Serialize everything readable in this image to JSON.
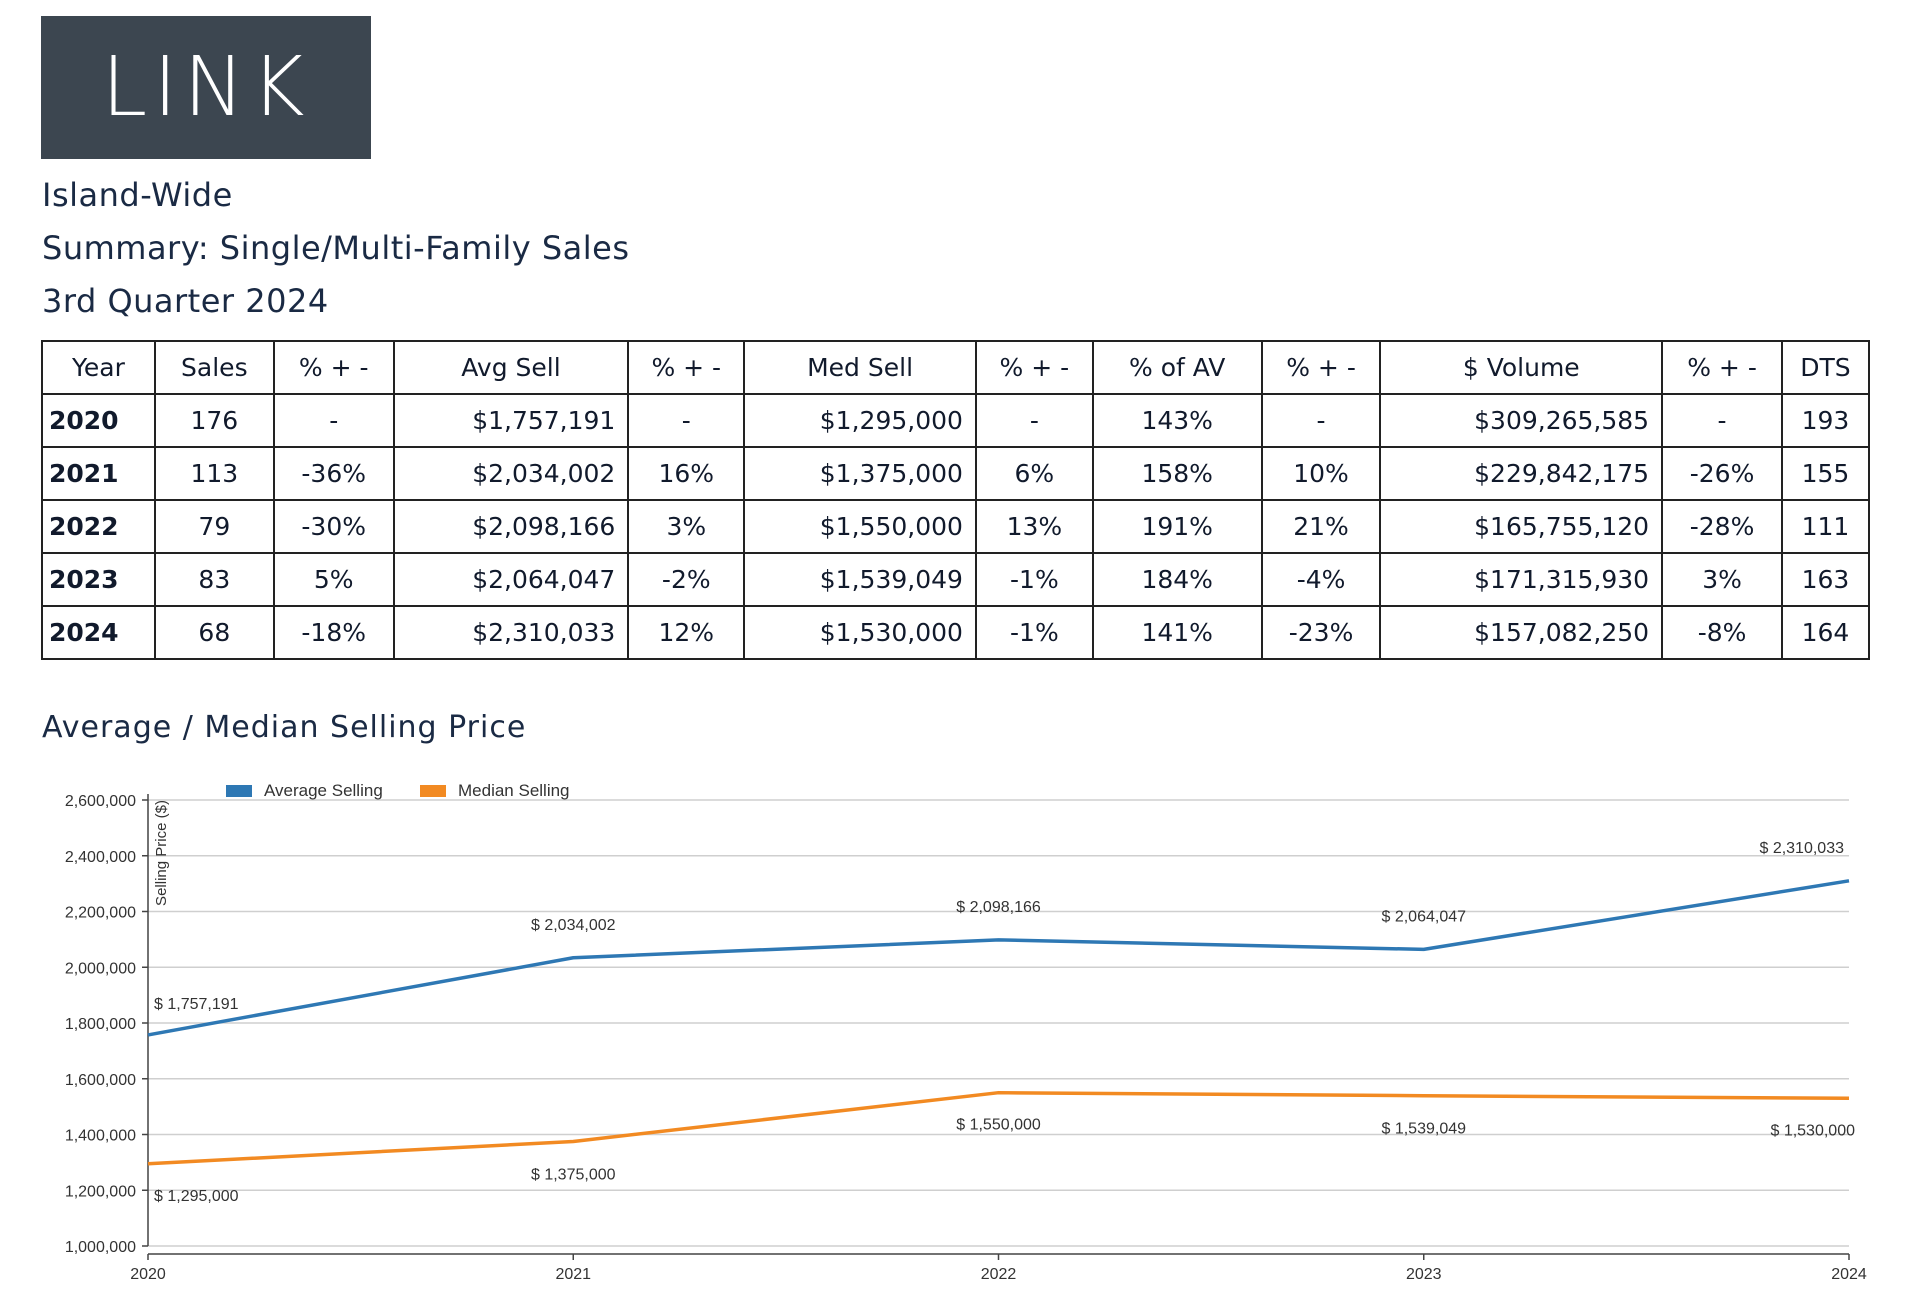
{
  "logo": {
    "text": "LINK"
  },
  "header": {
    "area": "Island-Wide",
    "summary": "Summary: Single/Multi-Family Sales",
    "period": "3rd Quarter 2024"
  },
  "table": {
    "headers": [
      "Year",
      "Sales",
      "% + -",
      "Avg Sell",
      "% + -",
      "Med Sell",
      "% + -",
      "% of AV",
      "% + -",
      "$ Volume",
      "% + -",
      "DTS"
    ],
    "rows": [
      [
        "2020",
        "176",
        "-",
        "$1,757,191",
        "-",
        "$1,295,000",
        "-",
        "143%",
        "-",
        "$309,265,585",
        "-",
        "193"
      ],
      [
        "2021",
        "113",
        "-36%",
        "$2,034,002",
        "16%",
        "$1,375,000",
        "6%",
        "158%",
        "10%",
        "$229,842,175",
        "-26%",
        "155"
      ],
      [
        "2022",
        "79",
        "-30%",
        "$2,098,166",
        "3%",
        "$1,550,000",
        "13%",
        "191%",
        "21%",
        "$165,755,120",
        "-28%",
        "111"
      ],
      [
        "2023",
        "83",
        "5%",
        "$2,064,047",
        "-2%",
        "$1,539,049",
        "-1%",
        "184%",
        "-4%",
        "$171,315,930",
        "3%",
        "163"
      ],
      [
        "2024",
        "68",
        "-18%",
        "$2,310,033",
        "12%",
        "$1,530,000",
        "-1%",
        "141%",
        "-23%",
        "$157,082,250",
        "-8%",
        "164"
      ]
    ]
  },
  "chart_section": {
    "title": "Average / Median Selling Price"
  },
  "chart_data": {
    "type": "line",
    "title": "Average / Median Selling Price",
    "ylabel": "Selling Price ($)",
    "xlabel": "",
    "x": [
      "2020",
      "2021",
      "2022",
      "2023",
      "2024"
    ],
    "ylim": [
      1000000,
      2600000
    ],
    "yticks": [
      1000000,
      1200000,
      1400000,
      1600000,
      1800000,
      2000000,
      2200000,
      2400000,
      2600000
    ],
    "ytick_labels": [
      "1,000,000",
      "1,200,000",
      "1,400,000",
      "1,600,000",
      "1,800,000",
      "2,000,000",
      "2,200,000",
      "2,400,000",
      "2,600,000"
    ],
    "grid": true,
    "legend_position": "top-left",
    "series": [
      {
        "name": "Average Selling",
        "color": "#2e78b4",
        "values": [
          1757191,
          2034002,
          2098166,
          2064047,
          2310033
        ],
        "labels": [
          "$ 1,757,191",
          "$ 2,034,002",
          "$ 2,098,166",
          "$ 2,064,047",
          "$ 2,310,033"
        ]
      },
      {
        "name": "Median Selling",
        "color": "#f28a22",
        "values": [
          1295000,
          1375000,
          1550000,
          1539049,
          1530000
        ],
        "labels": [
          "$ 1,295,000",
          "$ 1,375,000",
          "$ 1,550,000",
          "$ 1,539,049",
          "$ 1,530,000"
        ]
      }
    ]
  }
}
